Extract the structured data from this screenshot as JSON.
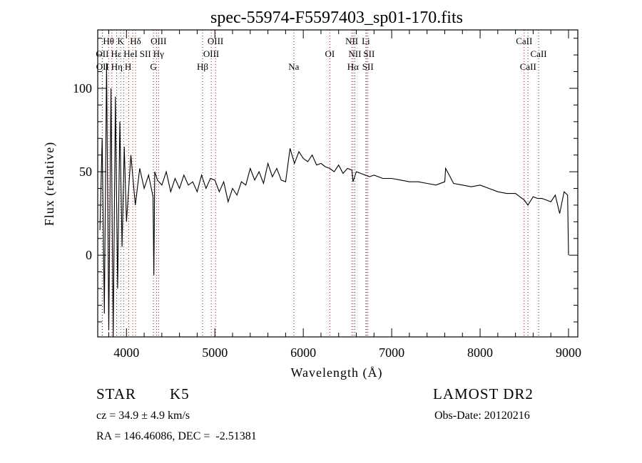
{
  "chart_data": {
    "type": "line",
    "title": "spec-55974-F5597403_sp01-170.fits",
    "xlabel": "Wavelength (Å)",
    "ylabel": "Flux (relative)",
    "xlim": [
      3675,
      9105
    ],
    "ylim": [
      -49,
      135
    ],
    "xticks": [
      4000,
      5000,
      6000,
      7000,
      8000,
      9000
    ],
    "xtick_labels": [
      "4000",
      "5000",
      "6000",
      "7000",
      "8000",
      "9000"
    ],
    "yticks": [
      0,
      50,
      100
    ],
    "ytick_labels": [
      "0",
      "50",
      "100"
    ],
    "grid": false,
    "series": [
      {
        "name": "flux",
        "x": [
          3700,
          3725,
          3750,
          3775,
          3800,
          3825,
          3850,
          3875,
          3900,
          3925,
          3950,
          3975,
          4000,
          4050,
          4100,
          4150,
          4200,
          4250,
          4300,
          4310,
          4320,
          4350,
          4400,
          4450,
          4500,
          4550,
          4600,
          4650,
          4700,
          4750,
          4800,
          4850,
          4900,
          4950,
          5000,
          5050,
          5100,
          5150,
          5200,
          5250,
          5300,
          5350,
          5400,
          5450,
          5500,
          5550,
          5600,
          5650,
          5700,
          5750,
          5800,
          5850,
          5900,
          5950,
          6000,
          6050,
          6100,
          6150,
          6200,
          6250,
          6300,
          6350,
          6400,
          6450,
          6500,
          6550,
          6563,
          6600,
          6650,
          6700,
          6750,
          6800,
          6900,
          7000,
          7100,
          7200,
          7300,
          7400,
          7500,
          7600,
          7610,
          7700,
          7800,
          7900,
          8000,
          8100,
          8200,
          8300,
          8400,
          8500,
          8540,
          8600,
          8650,
          8700,
          8750,
          8800,
          8850,
          8900,
          8950,
          8990,
          9000
        ],
        "y": [
          15,
          70,
          -35,
          115,
          -45,
          100,
          -50,
          95,
          -20,
          80,
          5,
          65,
          20,
          60,
          30,
          52,
          40,
          48,
          35,
          -12,
          50,
          45,
          42,
          50,
          38,
          46,
          40,
          48,
          42,
          44,
          38,
          48,
          40,
          46,
          45,
          38,
          44,
          32,
          40,
          36,
          44,
          42,
          52,
          45,
          50,
          43,
          55,
          47,
          52,
          45,
          44,
          64,
          55,
          62,
          58,
          56,
          60,
          54,
          55,
          53,
          52,
          50,
          54,
          49,
          52,
          51,
          44,
          50,
          49,
          48,
          47,
          48,
          46,
          46,
          45,
          44,
          44,
          43,
          42,
          44,
          52,
          43,
          42,
          41,
          42,
          40,
          38,
          37,
          37,
          33,
          30,
          35,
          34,
          34,
          33,
          32,
          36,
          25,
          38,
          36,
          0
        ]
      }
    ],
    "line_markers": [
      {
        "label": "OII",
        "wavelength": 3727,
        "row": 2
      },
      {
        "label": "OII",
        "wavelength": 3729,
        "row": 3
      },
      {
        "label": "Hθ",
        "wavelength": 3798,
        "row": 1
      },
      {
        "label": "Hε",
        "wavelength": 3835,
        "row": 2
      },
      {
        "label": "Hη",
        "wavelength": 3889,
        "row": 3
      },
      {
        "label": "K",
        "wavelength": 3934,
        "row": 1
      },
      {
        "label": "H",
        "wavelength": 3969,
        "row": 3
      },
      {
        "label": "HeI",
        "wavelength": 4026,
        "row": 2
      },
      {
        "label": "SII",
        "wavelength": 4072,
        "row": 2
      },
      {
        "label": "Hδ",
        "wavelength": 4102,
        "row": 1
      },
      {
        "label": "G",
        "wavelength": 4305,
        "row": 3
      },
      {
        "label": "Hγ",
        "wavelength": 4340,
        "row": 2
      },
      {
        "label": "OIII",
        "wavelength": 4363,
        "row": 1
      },
      {
        "label": "Hβ",
        "wavelength": 4861,
        "row": 3
      },
      {
        "label": "OIII",
        "wavelength": 4959,
        "row": 2
      },
      {
        "label": "OIII",
        "wavelength": 5007,
        "row": 1
      },
      {
        "label": "Na",
        "wavelength": 5893,
        "row": 3
      },
      {
        "label": "OI",
        "wavelength": 6300,
        "row": 2
      },
      {
        "label": "NII",
        "wavelength": 6548,
        "row": 1
      },
      {
        "label": "Hα",
        "wavelength": 6563,
        "row": 3
      },
      {
        "label": "NII",
        "wavelength": 6583,
        "row": 2
      },
      {
        "label": "Li",
        "wavelength": 6708,
        "row": 1
      },
      {
        "label": "SII",
        "wavelength": 6716,
        "row": 2
      },
      {
        "label": "SII",
        "wavelength": 6731,
        "row": 3
      },
      {
        "label": "CaII",
        "wavelength": 8498,
        "row": 1
      },
      {
        "label": "CaII",
        "wavelength": 8542,
        "row": 3
      },
      {
        "label": "CaII",
        "wavelength": 8662,
        "row": 2
      }
    ],
    "colors": {
      "line": "#000000",
      "marker": "#8b1a1a"
    }
  },
  "info": {
    "object_class": "STAR",
    "subclass": "K5",
    "survey": "LAMOST DR2",
    "cz": "cz = 34.9 ± 4.9 km/s",
    "obs_date": "Obs-Date: 20120216",
    "coords": "RA = 146.46086, DEC =  -2.51381"
  }
}
